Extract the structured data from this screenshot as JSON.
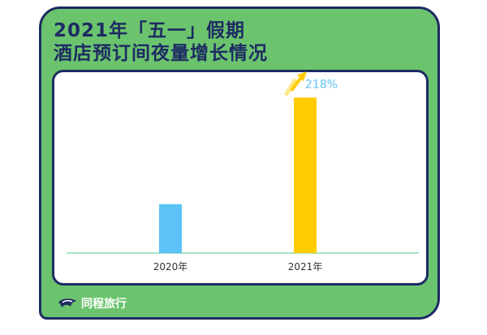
{
  "header": {
    "title_line1": "2021年「五一」假期",
    "title_line2": "酒店预订间夜量增长情况"
  },
  "brand": {
    "name": "同程旅行",
    "icon": "tongcheng-logo-icon"
  },
  "colors": {
    "background_card": "#6bc46d",
    "outline": "#1e2b63",
    "bar_2020": "#5bc3f5",
    "bar_2021": "#ffcc00",
    "growth_label": "#5bc3f5"
  },
  "chart_data": {
    "type": "bar",
    "categories": [
      "2020年",
      "2021年"
    ],
    "values": [
      100,
      318
    ],
    "ylim": [
      0,
      345
    ],
    "annotations": [
      {
        "category": "2021年",
        "text": "218%",
        "icon": "up-arrow-icon"
      }
    ],
    "title": "2021年「五一」假期 酒店预订间夜量增长情况",
    "xlabel": "",
    "ylabel": "",
    "grid": false,
    "legend": "none"
  }
}
